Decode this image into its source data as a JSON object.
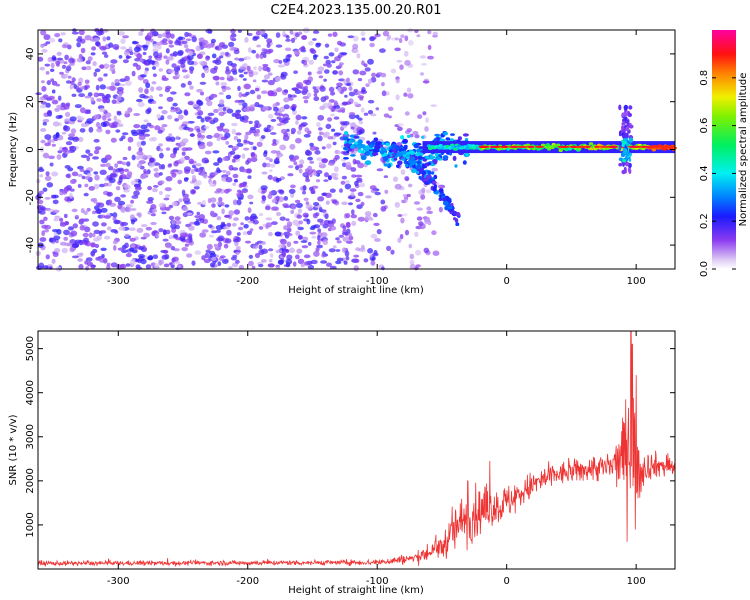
{
  "title": "C2E4.2023.135.00.20.R01",
  "colors": {
    "snr_line": "#ee3333",
    "axis": "#000000"
  },
  "chart_data": [
    {
      "type": "heatmap",
      "title": "",
      "xlabel": "Height of straight line (km)",
      "ylabel": "Frequency (Hz)",
      "xlim": [
        -362,
        130
      ],
      "ylim": [
        -50,
        50
      ],
      "xticks": [
        -300,
        -200,
        -100,
        0,
        100
      ],
      "yticks": [
        -40,
        -20,
        0,
        20,
        40
      ],
      "xtick_labels": [
        "-300",
        "-200",
        "-100",
        "0",
        "100"
      ],
      "ytick_labels": [
        "-40",
        "-20",
        "0",
        "20",
        "40"
      ],
      "colorbar": {
        "label": "Normalized spectral amplitude",
        "range": [
          0,
          1
        ],
        "ticks": [
          0.0,
          0.2,
          0.4,
          0.6,
          0.8
        ],
        "tick_labels": [
          "0.0",
          "0.2",
          "0.4",
          "0.6",
          "0.8"
        ],
        "colormap": "rainbow (white → violet → blue → cyan → green → yellow → red → magenta)"
      },
      "features": {
        "noise_region_x": [
          -362,
          -60
        ],
        "noise_level": "low (0.05–0.25)",
        "meteor_trace_x": [
          -125,
          130
        ],
        "meteor_trace_frequency_hz": 1,
        "meteor_trace_level": "0.3–0.9",
        "descending_branch": {
          "x": [
            -90,
            -37
          ],
          "frequency_hz": [
            0,
            -30
          ]
        },
        "spike_x": 92,
        "spike_frequency_range_hz": [
          -10,
          18
        ],
        "data_lower_bound_hz": -50
      }
    },
    {
      "type": "line",
      "title": "",
      "xlabel": "Height of straight line (km)",
      "ylabel": "SNR (10 * v/v)",
      "xlim": [
        -362,
        130
      ],
      "ylim": [
        0,
        5400
      ],
      "xticks": [
        -300,
        -200,
        -100,
        0,
        100
      ],
      "yticks": [
        1000,
        2000,
        3000,
        4000,
        5000
      ],
      "xtick_labels": [
        "-300",
        "-200",
        "-100",
        "0",
        "100"
      ],
      "ytick_labels": [
        "1000",
        "2000",
        "3000",
        "4000",
        "5000"
      ],
      "series": [
        {
          "name": "",
          "x": [
            -362,
            -300,
            -200,
            -100,
            -70,
            -50,
            -40,
            -30,
            -20,
            -10,
            0,
            10,
            20,
            30,
            40,
            50,
            60,
            70,
            80,
            85,
            90,
            95,
            100,
            105,
            110,
            120,
            130
          ],
          "y": [
            130,
            130,
            140,
            150,
            250,
            500,
            900,
            1200,
            1300,
            1400,
            1500,
            1700,
            1900,
            2050,
            2150,
            2200,
            2250,
            2300,
            2300,
            2400,
            2600,
            3000,
            2200,
            2300,
            2350,
            2350,
            2300
          ],
          "noise": [
            60,
            60,
            60,
            70,
            150,
            300,
            600,
            700,
            600,
            500,
            450,
            400,
            350,
            350,
            300,
            300,
            300,
            350,
            400,
            600,
            900,
            2000,
            1500,
            500,
            350,
            300,
            300
          ],
          "peaks": [
            {
              "x": -30,
              "y": 2000
            },
            {
              "x": -13,
              "y": 2450
            },
            {
              "x": 96,
              "y": 5400
            },
            {
              "x": 97,
              "y": 5100
            },
            {
              "x": 100,
              "y": 4400
            }
          ]
        }
      ]
    }
  ]
}
